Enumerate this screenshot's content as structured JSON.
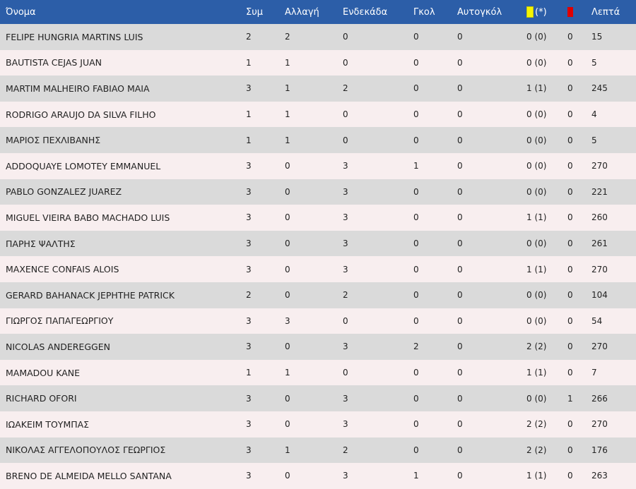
{
  "headers": {
    "name": "Όνομα",
    "apps": "Συμ",
    "subs": "Αλλαγή",
    "starts": "Ενδεκάδα",
    "goals": "Γκολ",
    "own_goals": "Αυτογκόλ",
    "yellow_suffix": "(*)",
    "minutes": "Λεπτά"
  },
  "colors": {
    "header_bg": "#2c5ea8",
    "row_odd": "#dadada",
    "row_even": "#f8eeef",
    "yellow_card": "#f5f500",
    "red_card": "#e00000"
  },
  "icons": {
    "yellow": "yellow-card-icon",
    "red": "red-card-icon"
  },
  "rows": [
    {
      "name": "FELIPE HUNGRIA MARTINS LUIS",
      "apps": "2",
      "subs": "2",
      "starts": "0",
      "goals": "0",
      "own_goals": "0",
      "yellow": "0 (0)",
      "red": "0",
      "minutes": "15"
    },
    {
      "name": "BAUTISTA CEJAS JUAN",
      "apps": "1",
      "subs": "1",
      "starts": "0",
      "goals": "0",
      "own_goals": "0",
      "yellow": "0 (0)",
      "red": "0",
      "minutes": "5"
    },
    {
      "name": "MARTIM MALHEIRO FABIAO MAIA",
      "apps": "3",
      "subs": "1",
      "starts": "2",
      "goals": "0",
      "own_goals": "0",
      "yellow": "1 (1)",
      "red": "0",
      "minutes": "245"
    },
    {
      "name": "RODRIGO ARAUJO DA SILVA FILHO",
      "apps": "1",
      "subs": "1",
      "starts": "0",
      "goals": "0",
      "own_goals": "0",
      "yellow": "0 (0)",
      "red": "0",
      "minutes": "4"
    },
    {
      "name": "ΜΑΡΙΟΣ ΠΕΧΛΙΒΑΝΗΣ",
      "apps": "1",
      "subs": "1",
      "starts": "0",
      "goals": "0",
      "own_goals": "0",
      "yellow": "0 (0)",
      "red": "0",
      "minutes": "5"
    },
    {
      "name": "ADDOQUAYE LOMOTEY EMMANUEL",
      "apps": "3",
      "subs": "0",
      "starts": "3",
      "goals": "1",
      "own_goals": "0",
      "yellow": "0 (0)",
      "red": "0",
      "minutes": "270"
    },
    {
      "name": "PABLO GONZALEZ JUAREZ",
      "apps": "3",
      "subs": "0",
      "starts": "3",
      "goals": "0",
      "own_goals": "0",
      "yellow": "0 (0)",
      "red": "0",
      "minutes": "221"
    },
    {
      "name": "MIGUEL VIEIRA BABO MACHADO LUIS",
      "apps": "3",
      "subs": "0",
      "starts": "3",
      "goals": "0",
      "own_goals": "0",
      "yellow": "1 (1)",
      "red": "0",
      "minutes": "260"
    },
    {
      "name": "ΠΑΡΗΣ ΨΑΛΤΗΣ",
      "apps": "3",
      "subs": "0",
      "starts": "3",
      "goals": "0",
      "own_goals": "0",
      "yellow": "0 (0)",
      "red": "0",
      "minutes": "261"
    },
    {
      "name": "MAXENCE CONFAIS ALOIS",
      "apps": "3",
      "subs": "0",
      "starts": "3",
      "goals": "0",
      "own_goals": "0",
      "yellow": "1 (1)",
      "red": "0",
      "minutes": "270"
    },
    {
      "name": "GERARD BAHANACK JEPHTHE PATRICK",
      "apps": "2",
      "subs": "0",
      "starts": "2",
      "goals": "0",
      "own_goals": "0",
      "yellow": "0 (0)",
      "red": "0",
      "minutes": "104"
    },
    {
      "name": "ΓΙΩΡΓΟΣ ΠΑΠΑΓΕΩΡΓΙΟΥ",
      "apps": "3",
      "subs": "3",
      "starts": "0",
      "goals": "0",
      "own_goals": "0",
      "yellow": "0 (0)",
      "red": "0",
      "minutes": "54"
    },
    {
      "name": "NICOLAS ANDEREGGEN",
      "apps": "3",
      "subs": "0",
      "starts": "3",
      "goals": "2",
      "own_goals": "0",
      "yellow": "2 (2)",
      "red": "0",
      "minutes": "270"
    },
    {
      "name": "MAMADOU KANE",
      "apps": "1",
      "subs": "1",
      "starts": "0",
      "goals": "0",
      "own_goals": "0",
      "yellow": "1 (1)",
      "red": "0",
      "minutes": "7"
    },
    {
      "name": "RICHARD OFORI",
      "apps": "3",
      "subs": "0",
      "starts": "3",
      "goals": "0",
      "own_goals": "0",
      "yellow": "0 (0)",
      "red": "1",
      "minutes": "266"
    },
    {
      "name": "ΙΩΑΚΕΙΜ ΤΟΥΜΠΑΣ",
      "apps": "3",
      "subs": "0",
      "starts": "3",
      "goals": "0",
      "own_goals": "0",
      "yellow": "2 (2)",
      "red": "0",
      "minutes": "270"
    },
    {
      "name": "ΝΙΚΟΛΑΣ ΑΓΓΕΛΟΠΟΥΛΟΣ ΓΕΩΡΓΙΟΣ",
      "apps": "3",
      "subs": "1",
      "starts": "2",
      "goals": "0",
      "own_goals": "0",
      "yellow": "2 (2)",
      "red": "0",
      "minutes": "176"
    },
    {
      "name": "BRENO DE ALMEIDA MELLO SANTANA",
      "apps": "3",
      "subs": "0",
      "starts": "3",
      "goals": "1",
      "own_goals": "0",
      "yellow": "1 (1)",
      "red": "0",
      "minutes": "263"
    }
  ]
}
